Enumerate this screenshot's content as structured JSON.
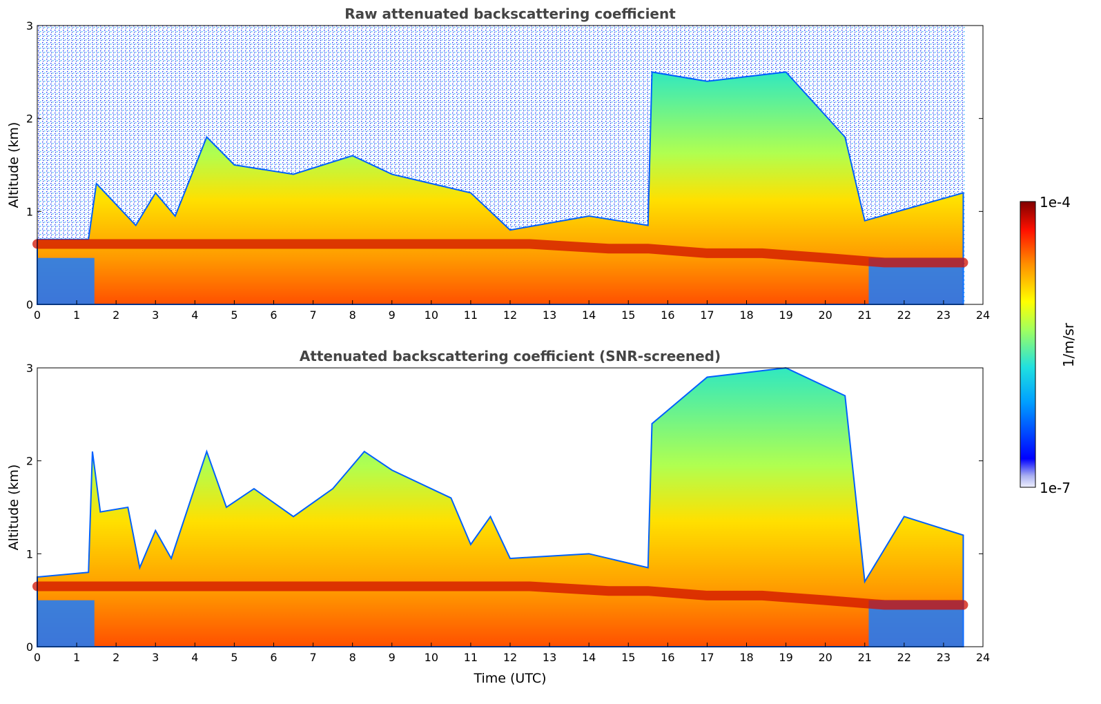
{
  "chart_data": [
    {
      "type": "heatmap",
      "title": "Raw attenuated backscattering coefficient",
      "xlabel": "",
      "ylabel": "Altitude (km)",
      "xlim": [
        0,
        24
      ],
      "ylim": [
        0,
        3
      ],
      "xticks": [
        "0",
        "1",
        "2",
        "3",
        "4",
        "5",
        "6",
        "7",
        "8",
        "9",
        "10",
        "11",
        "12",
        "13",
        "14",
        "15",
        "16",
        "17",
        "18",
        "19",
        "20",
        "21",
        "22",
        "23",
        "24"
      ],
      "yticks": [
        "0",
        "1",
        "2",
        "3"
      ],
      "boundary_layer_top_km": [
        [
          0,
          0.7
        ],
        [
          1.3,
          0.7
        ],
        [
          1.5,
          1.3
        ],
        [
          2.5,
          0.85
        ],
        [
          3,
          1.2
        ],
        [
          3.5,
          0.95
        ],
        [
          4.3,
          1.8
        ],
        [
          5,
          1.5
        ],
        [
          6.5,
          1.4
        ],
        [
          8,
          1.6
        ],
        [
          9,
          1.4
        ],
        [
          11,
          1.2
        ],
        [
          12,
          0.8
        ],
        [
          14,
          0.95
        ],
        [
          15.5,
          0.85
        ],
        [
          15.6,
          2.5
        ],
        [
          17,
          2.4
        ],
        [
          19,
          2.5
        ],
        [
          20.5,
          1.8
        ],
        [
          21,
          0.9
        ],
        [
          23.5,
          1.2
        ]
      ],
      "strong_layer_km": [
        [
          0,
          0.65
        ],
        [
          1.3,
          0.65
        ],
        [
          12.5,
          0.65
        ],
        [
          14.5,
          0.6
        ],
        [
          15.5,
          0.6
        ],
        [
          17,
          0.55
        ],
        [
          18.4,
          0.55
        ],
        [
          20,
          0.5
        ],
        [
          21.5,
          0.45
        ],
        [
          23.5,
          0.45
        ]
      ],
      "noise_above_bl": true
    },
    {
      "type": "heatmap",
      "title": "Attenuated backscattering coefficient (SNR-screened)",
      "xlabel": "Time (UTC)",
      "ylabel": "Altitude (km)",
      "xlim": [
        0,
        24
      ],
      "ylim": [
        0,
        3
      ],
      "xticks": [
        "0",
        "1",
        "2",
        "3",
        "4",
        "5",
        "6",
        "7",
        "8",
        "9",
        "10",
        "11",
        "12",
        "13",
        "14",
        "15",
        "16",
        "17",
        "18",
        "19",
        "20",
        "21",
        "22",
        "23",
        "24"
      ],
      "yticks": [
        "0",
        "1",
        "2",
        "3"
      ],
      "boundary_layer_top_km": [
        [
          0,
          0.75
        ],
        [
          1.3,
          0.8
        ],
        [
          1.4,
          2.1
        ],
        [
          1.6,
          1.45
        ],
        [
          2.3,
          1.5
        ],
        [
          2.6,
          0.85
        ],
        [
          3,
          1.25
        ],
        [
          3.4,
          0.95
        ],
        [
          4.3,
          2.1
        ],
        [
          4.8,
          1.5
        ],
        [
          5.5,
          1.7
        ],
        [
          6.5,
          1.4
        ],
        [
          7.5,
          1.7
        ],
        [
          8.3,
          2.1
        ],
        [
          9,
          1.9
        ],
        [
          10.5,
          1.6
        ],
        [
          11,
          1.1
        ],
        [
          11.5,
          1.4
        ],
        [
          12,
          0.95
        ],
        [
          14,
          1.0
        ],
        [
          15.5,
          0.85
        ],
        [
          15.6,
          2.4
        ],
        [
          17,
          2.9
        ],
        [
          19,
          3.0
        ],
        [
          20.5,
          2.7
        ],
        [
          21,
          0.7
        ],
        [
          22,
          1.4
        ],
        [
          23.5,
          1.2
        ]
      ],
      "strong_layer_km": [
        [
          0,
          0.65
        ],
        [
          1.3,
          0.65
        ],
        [
          12.5,
          0.65
        ],
        [
          14.5,
          0.6
        ],
        [
          15.5,
          0.6
        ],
        [
          17,
          0.55
        ],
        [
          18.4,
          0.55
        ],
        [
          20,
          0.5
        ],
        [
          21.5,
          0.45
        ],
        [
          23.5,
          0.45
        ]
      ],
      "noise_above_bl": false
    }
  ],
  "colorbar": {
    "max_label": "1e-4",
    "min_label": "1e-7",
    "label": "1/m/sr"
  }
}
